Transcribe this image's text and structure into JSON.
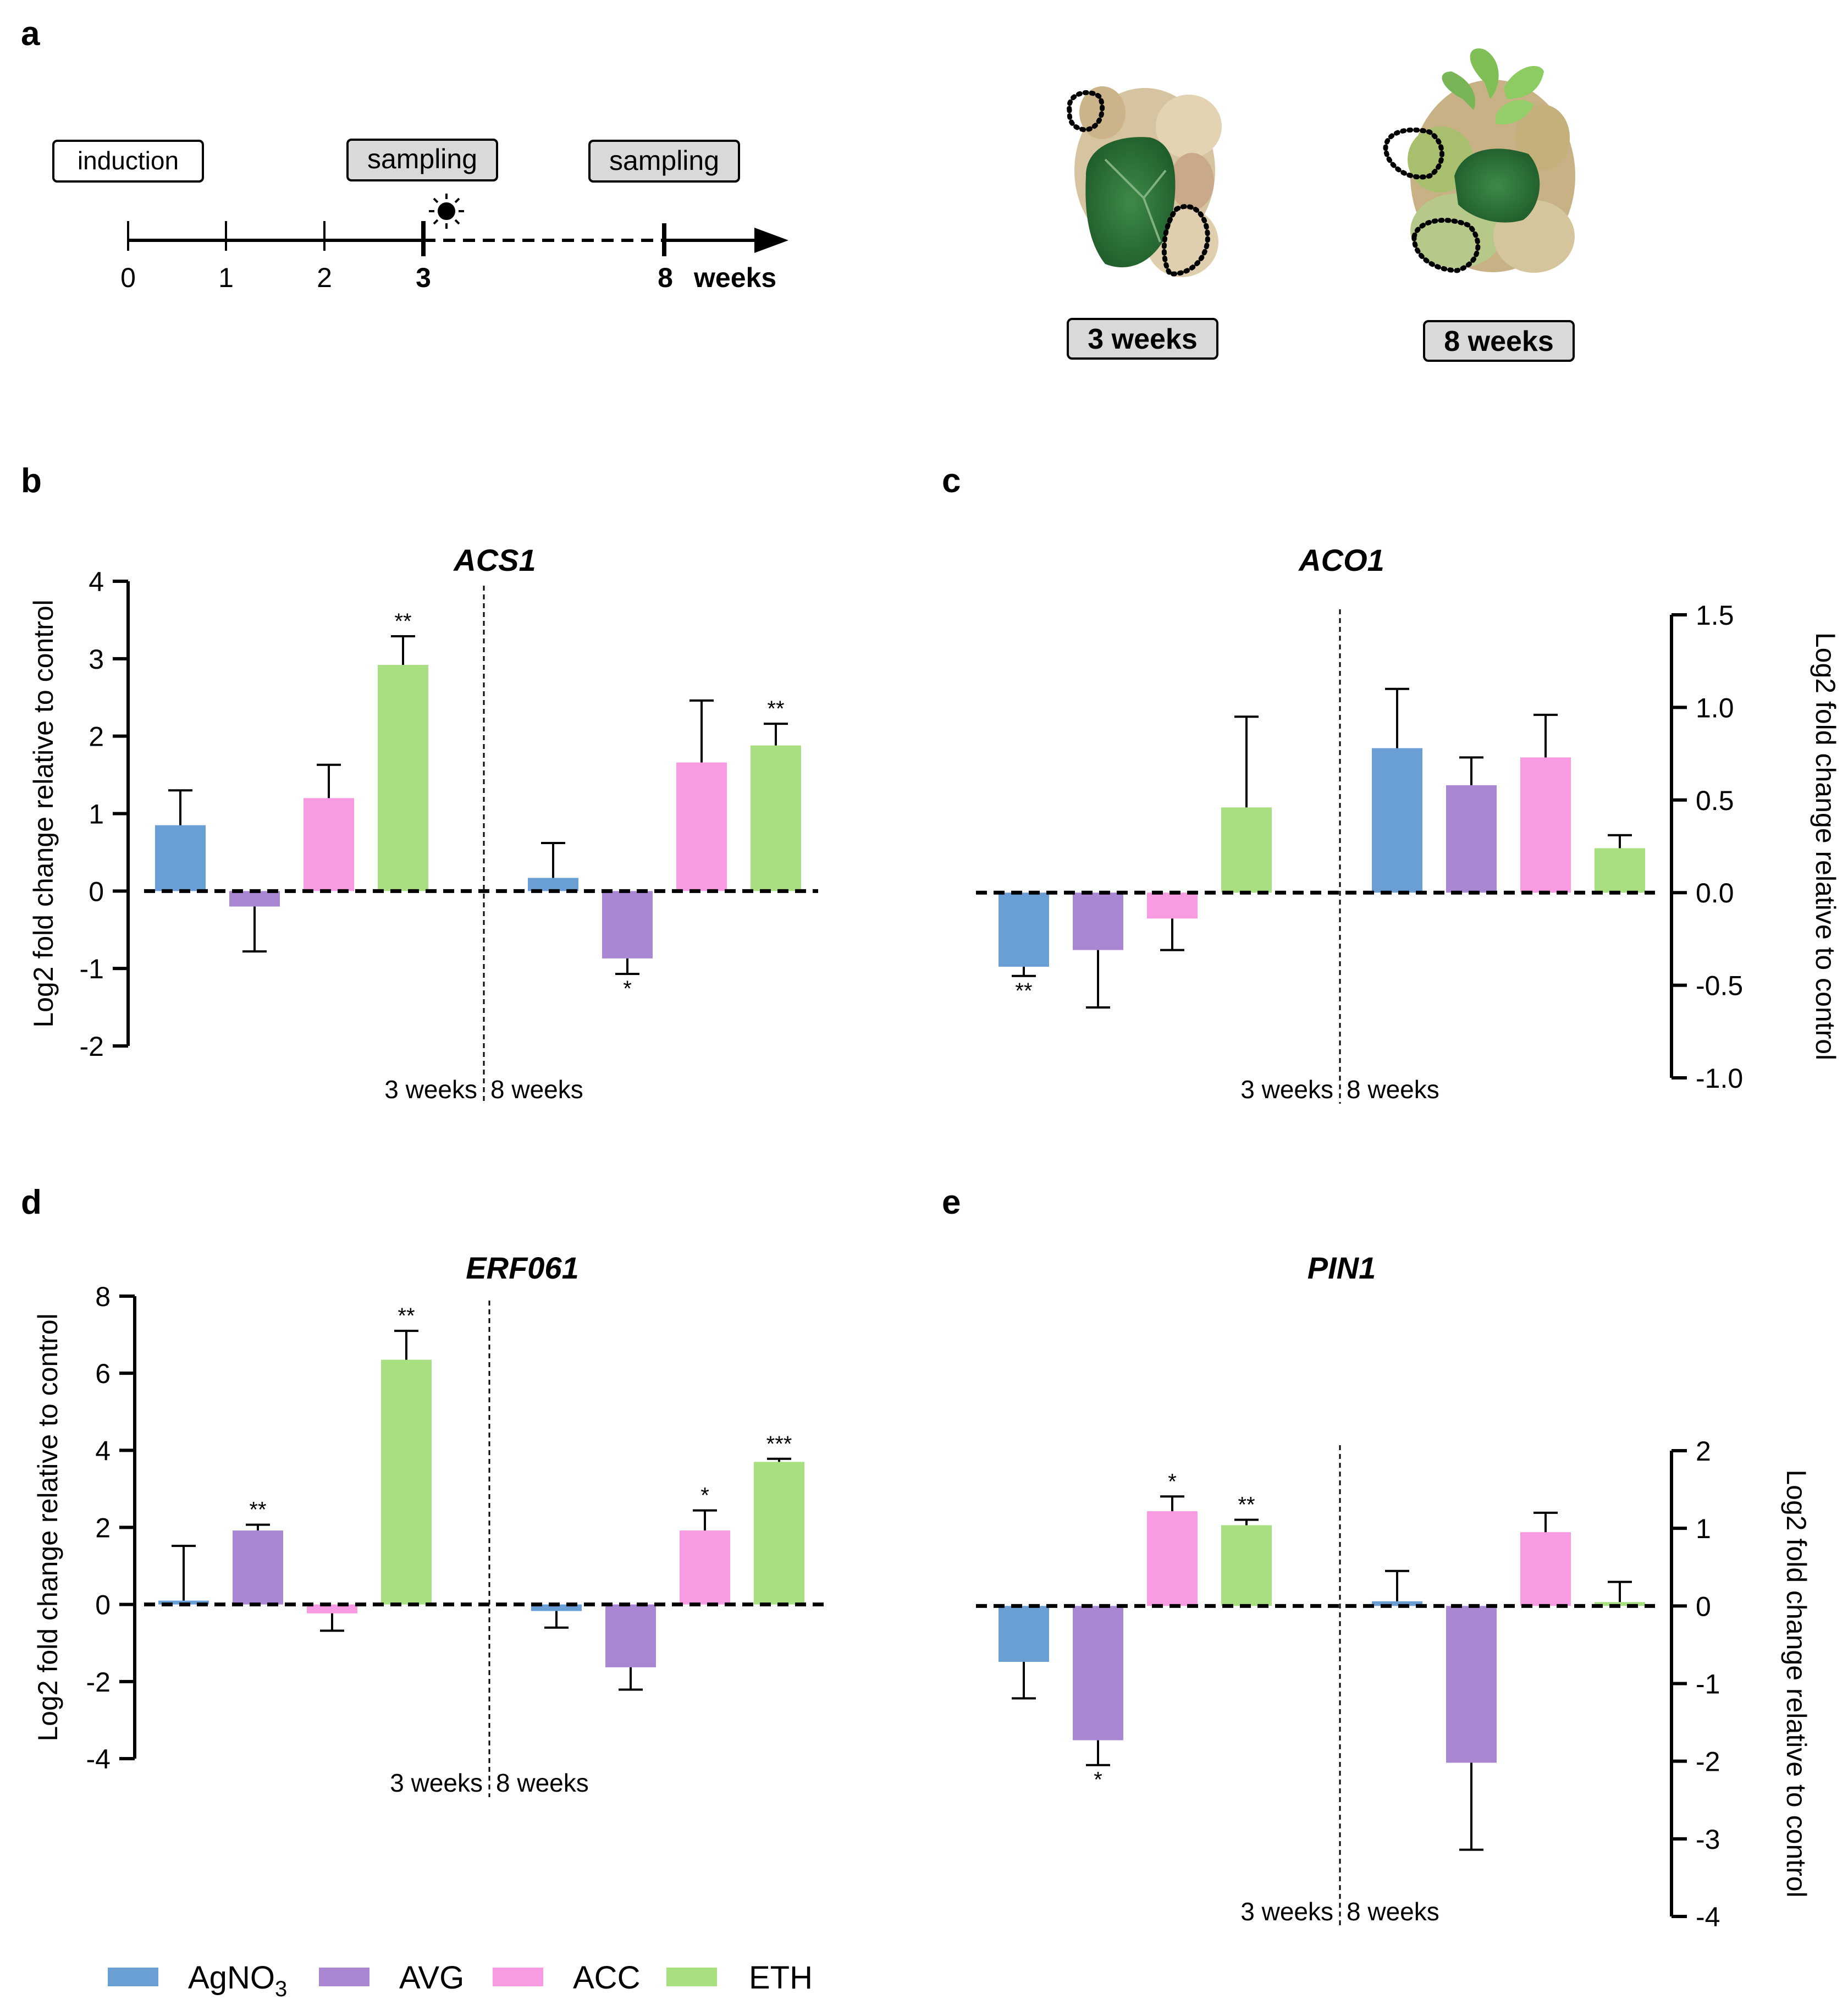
{
  "panel_letters": [
    "a",
    "b",
    "c",
    "d",
    "e"
  ],
  "timeline": {
    "induction_label": "induction",
    "sampling_label": "sampling",
    "ticks": [
      "0",
      "1",
      "2",
      "3",
      "8"
    ],
    "weeks_label": "weeks",
    "photo_captions": [
      "3 weeks",
      "8 weeks"
    ]
  },
  "colors": {
    "AgNO3": "#6a9fd6",
    "AVG": "#a987d3",
    "ACC": "#f99be3",
    "ETH": "#a8df80"
  },
  "legend": [
    {
      "key": "AgNO3",
      "label": "AgNO",
      "sub": "3"
    },
    {
      "key": "AVG",
      "label": "AVG",
      "sub": ""
    },
    {
      "key": "ACC",
      "label": "ACC",
      "sub": ""
    },
    {
      "key": "ETH",
      "label": "ETH",
      "sub": ""
    }
  ],
  "group_labels": [
    "3 weeks",
    "8 weeks"
  ],
  "chart_data": [
    {
      "panel": "b",
      "type": "bar",
      "title": "ACS1",
      "ylabel": "Log2 fold change relative to control",
      "ylim": [
        -2,
        4
      ],
      "yticks": [
        "-2",
        "-1",
        "0",
        "1",
        "2",
        "3",
        "4"
      ],
      "ytick_values": [
        -2,
        -1,
        0,
        1,
        2,
        3,
        4
      ],
      "groups": [
        "3 weeks",
        "8 weeks"
      ],
      "series": [
        {
          "name": "AgNO3",
          "values": [
            0.85,
            0.17
          ],
          "errors": [
            0.45,
            0.45
          ],
          "sig": [
            "",
            ""
          ]
        },
        {
          "name": "AVG",
          "values": [
            -0.2,
            -0.87
          ],
          "errors": [
            0.58,
            0.2
          ],
          "sig": [
            "",
            "*"
          ]
        },
        {
          "name": "ACC",
          "values": [
            1.2,
            1.66
          ],
          "errors": [
            0.43,
            0.8
          ],
          "sig": [
            "",
            ""
          ]
        },
        {
          "name": "ETH",
          "values": [
            2.92,
            1.88
          ],
          "errors": [
            0.37,
            0.28
          ],
          "sig": [
            "**",
            "**"
          ]
        }
      ]
    },
    {
      "panel": "c",
      "type": "bar",
      "title": "ACO1",
      "ylabel": "Log2 fold change relative to control",
      "ylim": [
        -1.0,
        1.5
      ],
      "yticks": [
        "-1.0",
        "-0.5",
        "0.0",
        "0.5",
        "1.0",
        "1.5"
      ],
      "ytick_values": [
        -1.0,
        -0.5,
        0.0,
        0.5,
        1.0,
        1.5
      ],
      "groups": [
        "3 weeks",
        "8 weeks"
      ],
      "series": [
        {
          "name": "AgNO3",
          "values": [
            -0.4,
            0.78
          ],
          "errors": [
            0.05,
            0.32
          ],
          "sig": [
            "**",
            ""
          ]
        },
        {
          "name": "AVG",
          "values": [
            -0.31,
            0.58
          ],
          "errors": [
            0.31,
            0.15
          ],
          "sig": [
            "",
            ""
          ]
        },
        {
          "name": "ACC",
          "values": [
            -0.14,
            0.73
          ],
          "errors": [
            0.17,
            0.23
          ],
          "sig": [
            "",
            ""
          ]
        },
        {
          "name": "ETH",
          "values": [
            0.46,
            0.24
          ],
          "errors": [
            0.49,
            0.07
          ],
          "sig": [
            "",
            ""
          ]
        }
      ]
    },
    {
      "panel": "d",
      "type": "bar",
      "title": "ERF061",
      "ylabel": "Log2 fold change relative to control",
      "ylim": [
        -4,
        8
      ],
      "yticks": [
        "-4",
        "-2",
        "0",
        "2",
        "4",
        "6",
        "8"
      ],
      "ytick_values": [
        -4,
        -2,
        0,
        2,
        4,
        6,
        8
      ],
      "groups": [
        "3 weeks",
        "8 weeks"
      ],
      "series": [
        {
          "name": "AgNO3",
          "values": [
            0.1,
            -0.17
          ],
          "errors": [
            1.42,
            0.43
          ],
          "sig": [
            "",
            ""
          ]
        },
        {
          "name": "AVG",
          "values": [
            1.92,
            -1.63
          ],
          "errors": [
            0.15,
            0.58
          ],
          "sig": [
            "**",
            ""
          ]
        },
        {
          "name": "ACC",
          "values": [
            -0.23,
            1.92
          ],
          "errors": [
            0.45,
            0.52
          ],
          "sig": [
            "",
            "*"
          ]
        },
        {
          "name": "ETH",
          "values": [
            6.35,
            3.7
          ],
          "errors": [
            0.75,
            0.08
          ],
          "sig": [
            "**",
            "***"
          ]
        }
      ]
    },
    {
      "panel": "e",
      "type": "bar",
      "title": "PIN1",
      "ylabel": "Log2 fold change relative to control",
      "ylim": [
        -4,
        2
      ],
      "yticks": [
        "-4",
        "-3",
        "-2",
        "-1",
        "0",
        "1",
        "2"
      ],
      "ytick_values": [
        -4,
        -3,
        -2,
        -1,
        0,
        1,
        2
      ],
      "groups": [
        "3 weeks",
        "8 weeks"
      ],
      "series": [
        {
          "name": "AgNO3",
          "values": [
            -0.72,
            0.06
          ],
          "errors": [
            0.47,
            0.39
          ],
          "sig": [
            "",
            ""
          ]
        },
        {
          "name": "AVG",
          "values": [
            -1.73,
            -2.02
          ],
          "errors": [
            0.32,
            1.12
          ],
          "sig": [
            "*",
            ""
          ]
        },
        {
          "name": "ACC",
          "values": [
            1.22,
            0.95
          ],
          "errors": [
            0.19,
            0.25
          ],
          "sig": [
            "*",
            ""
          ]
        },
        {
          "name": "ETH",
          "values": [
            1.04,
            0.05
          ],
          "errors": [
            0.07,
            0.26
          ],
          "sig": [
            "**",
            ""
          ]
        }
      ]
    }
  ]
}
